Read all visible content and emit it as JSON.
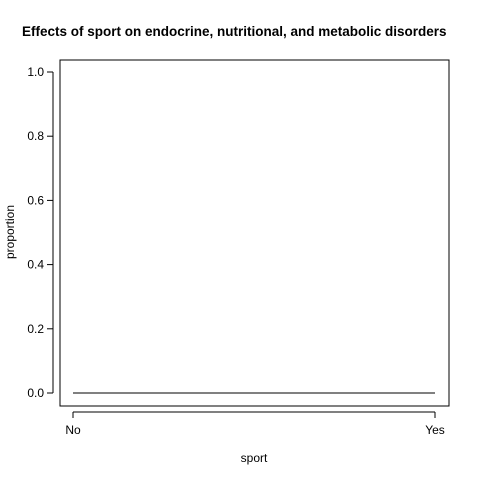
{
  "chart_data": {
    "type": "line",
    "title": "Effects of sport on endocrine, nutritional, and metabolic disorders",
    "xlabel": "sport",
    "ylabel": "proportion",
    "categories": [
      "No",
      "Yes"
    ],
    "series": [
      {
        "values": [
          0.0,
          0.0
        ],
        "color": "#000000"
      }
    ],
    "ylim": [
      0,
      1
    ],
    "yticks": [
      "0.0",
      "0.2",
      "0.4",
      "0.6",
      "0.8",
      "1.0"
    ],
    "grid": false,
    "legend": "none"
  }
}
